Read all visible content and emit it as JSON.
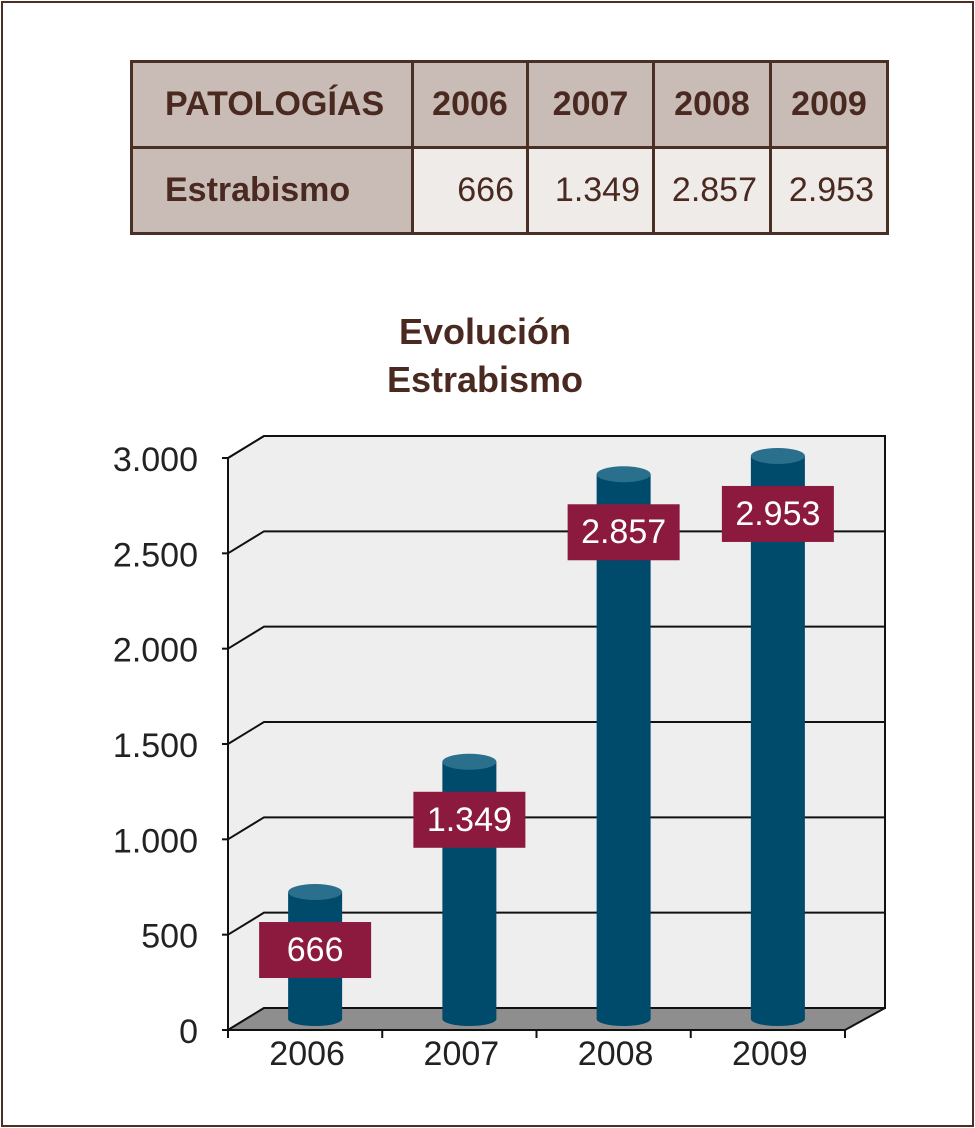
{
  "table": {
    "header": [
      "PATOLOGÍAS",
      "2006",
      "2007",
      "2008",
      "2009"
    ],
    "rows": [
      [
        "Estrabismo",
        "666",
        "1.349",
        "2.857",
        "2.953"
      ]
    ]
  },
  "chart_data": {
    "type": "bar",
    "title": "Evolución Estrabismo",
    "categories": [
      "2006",
      "2007",
      "2008",
      "2009"
    ],
    "values": [
      666,
      1349,
      2857,
      2953
    ],
    "value_labels": [
      "666",
      "1.349",
      "2.857",
      "2.953"
    ],
    "color": "#004a6b",
    "label_color": "#8c1a3f",
    "ylim": [
      0,
      3000
    ],
    "yticks": [
      0,
      500,
      {
        "value": 1000,
        "label": "1.000"
      },
      {
        "value": 1500,
        "label": "1.500"
      },
      {
        "value": 2000,
        "label": "2.000"
      },
      {
        "value": 2500,
        "label": "2.500"
      },
      {
        "value": 3000,
        "label": "3.000"
      }
    ],
    "grid": true
  }
}
